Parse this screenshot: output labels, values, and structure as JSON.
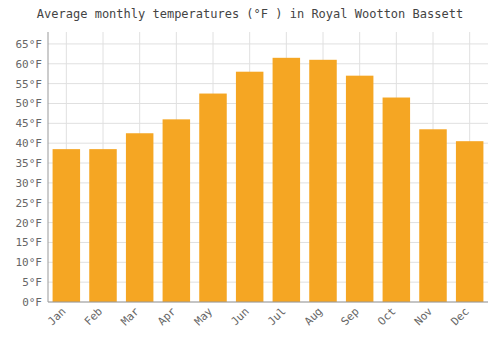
{
  "chart_data": {
    "type": "bar",
    "title": "Average monthly temperatures (°F ) in Royal Wootton Bassett",
    "categories": [
      "Jan",
      "Feb",
      "Mar",
      "Apr",
      "May",
      "Jun",
      "Jul",
      "Aug",
      "Sep",
      "Oct",
      "Nov",
      "Dec"
    ],
    "values": [
      38.5,
      38.5,
      42.5,
      46.0,
      52.5,
      58.0,
      61.5,
      61.0,
      57.0,
      51.5,
      43.5,
      40.5
    ],
    "color": "#F5A623",
    "ylim": [
      0,
      68
    ],
    "yticks": [
      {
        "value": 0,
        "label": "0°F"
      },
      {
        "value": 5,
        "label": "5°F"
      },
      {
        "value": 10,
        "label": "10°F"
      },
      {
        "value": 15,
        "label": "15°F"
      },
      {
        "value": 20,
        "label": "20°F"
      },
      {
        "value": 25,
        "label": "25°F"
      },
      {
        "value": 30,
        "label": "30°F"
      },
      {
        "value": 35,
        "label": "35°F"
      },
      {
        "value": 40,
        "label": "40°F"
      },
      {
        "value": 45,
        "label": "45°F"
      },
      {
        "value": 50,
        "label": "50°F"
      },
      {
        "value": 55,
        "label": "55°F"
      },
      {
        "value": 60,
        "label": "60°F"
      },
      {
        "value": 65,
        "label": "65°F"
      }
    ],
    "grid": true
  }
}
